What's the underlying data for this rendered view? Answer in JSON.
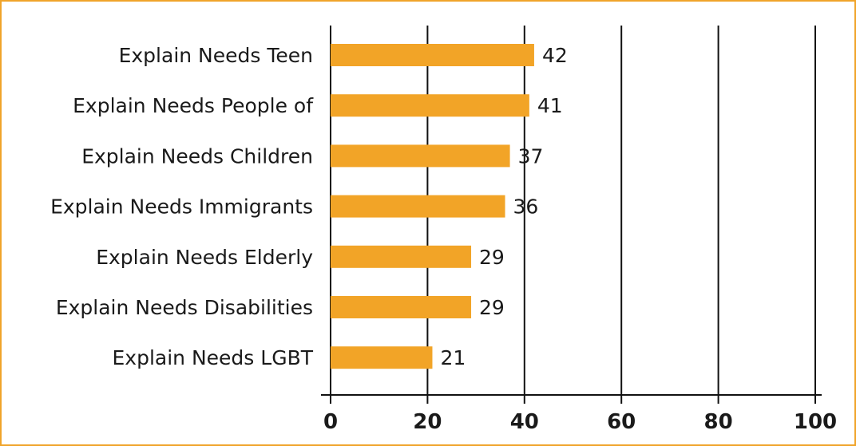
{
  "chart_data": {
    "type": "bar",
    "orientation": "horizontal",
    "categories": [
      "Explain Needs Teen",
      "Explain Needs People of",
      "Explain Needs Children",
      "Explain Needs Immigrants",
      "Explain Needs Elderly",
      "Explain Needs Disabilities",
      "Explain Needs LGBT"
    ],
    "values": [
      42,
      41,
      37,
      36,
      29,
      29,
      21
    ],
    "value_labels": [
      "42",
      "41",
      "37",
      "36",
      "29",
      "29",
      "21"
    ],
    "xlim": [
      0,
      100
    ],
    "x_ticks": [
      "0",
      "20",
      "40",
      "60",
      "80",
      "100"
    ],
    "grid": "vertical",
    "title": "",
    "xlabel": "",
    "ylabel": "",
    "colors": {
      "bar": "#f2a427",
      "border": "#f0a42a",
      "grid": "#111111",
      "text": "#1a1a1a"
    }
  }
}
